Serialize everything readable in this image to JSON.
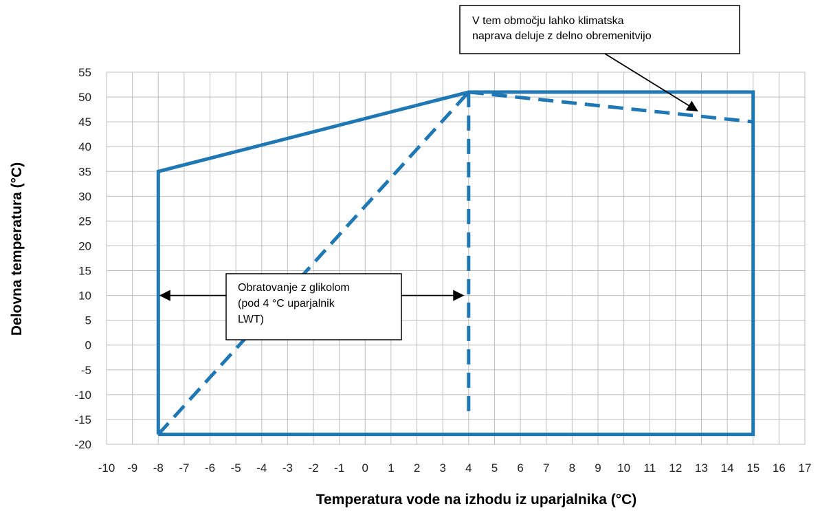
{
  "chart_data": {
    "type": "line",
    "xlabel": "Temperatura vode na izhodu iz uparjalnika (°C)",
    "ylabel": "Delovna temperatura (°C)",
    "xlim": [
      -10,
      17
    ],
    "ylim": [
      -20,
      55
    ],
    "x_ticks": [
      "-10",
      "-9",
      "-8",
      "-7",
      "-6",
      "-5",
      "-4",
      "-3",
      "-2",
      "-1",
      "0",
      "1",
      "2",
      "3",
      "4",
      "5",
      "6",
      "7",
      "8",
      "9",
      "10",
      "11",
      "12",
      "13",
      "14",
      "15",
      "16",
      "17"
    ],
    "y_ticks": [
      "55",
      "50",
      "45",
      "40",
      "35",
      "30",
      "25",
      "20",
      "15",
      "10",
      "5",
      "0",
      "-5",
      "-10",
      "-15",
      "-20"
    ],
    "grid": true,
    "series": [
      {
        "style": "solid",
        "color": "#1f77b4",
        "points": [
          [
            -8,
            -18
          ],
          [
            -8,
            35
          ],
          [
            4,
            51
          ],
          [
            15,
            51
          ],
          [
            15,
            -18
          ],
          [
            -8,
            -18
          ]
        ]
      },
      {
        "style": "dashed",
        "color": "#1f77b4",
        "points": [
          [
            -8,
            -18
          ],
          [
            4,
            51
          ]
        ]
      },
      {
        "style": "dashed",
        "color": "#1f77b4",
        "points": [
          [
            4,
            51
          ],
          [
            4,
            -15
          ]
        ]
      },
      {
        "style": "dashed",
        "color": "#1f77b4",
        "points": [
          [
            4,
            51
          ],
          [
            15,
            45
          ]
        ]
      }
    ],
    "annotations": [
      {
        "lines": [
          "V  tem  območju  lahko  klimatska",
          "naprava deluje z delno obremenitvijo"
        ],
        "arrow_to": [
          13,
          47.5
        ]
      },
      {
        "lines": [
          "Obratovanje z glikolom",
          "(pod  4  °C  uparjalnik",
          "LWT)"
        ],
        "arrow_to_left": [
          -8,
          10
        ],
        "arrow_to_right": [
          4,
          10
        ]
      }
    ]
  }
}
